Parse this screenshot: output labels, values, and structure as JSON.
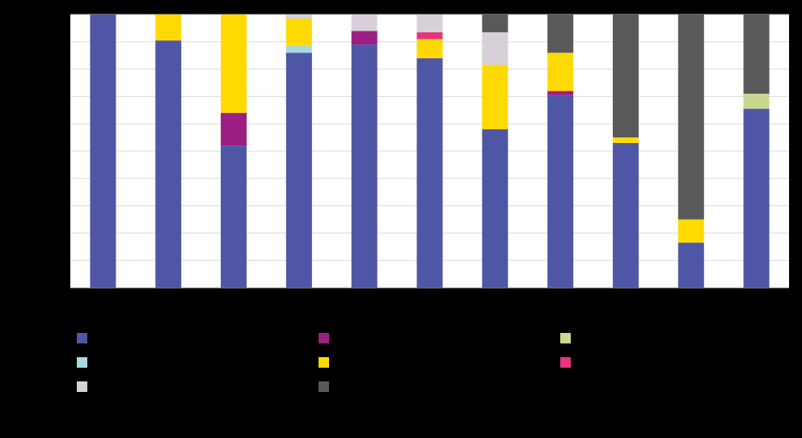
{
  "chart_data": {
    "type": "stacked_bar_percent",
    "categories": [
      null,
      null,
      null,
      null,
      null,
      null,
      null,
      null,
      null,
      null,
      null
    ],
    "ylim": [
      0,
      100
    ],
    "yticks": [
      0,
      10,
      20,
      30,
      40,
      50,
      60,
      70,
      80,
      90,
      100
    ],
    "grid": true,
    "series": [
      {
        "color": "#4f56a6",
        "values": [
          100,
          90.5,
          52,
          86,
          89,
          84,
          58,
          70.5,
          53,
          16.5,
          65.5
        ]
      },
      {
        "color": "#9b1f82",
        "values": [
          0,
          0,
          12,
          0,
          5,
          0,
          0,
          1.5,
          0,
          0,
          0
        ]
      },
      {
        "color": "#c9d88f",
        "values": [
          0,
          0,
          0,
          0,
          0,
          0,
          0,
          0,
          0,
          0,
          5.5
        ]
      },
      {
        "color": "#a9d8e0",
        "values": [
          0,
          0,
          0,
          2.5,
          0,
          0,
          0,
          0,
          0,
          0,
          0
        ]
      },
      {
        "color": "#ffd900",
        "values": [
          0,
          9.5,
          36,
          10,
          0,
          7,
          23.5,
          14,
          2,
          8.5,
          0
        ]
      },
      {
        "color": "#e8347d",
        "values": [
          0,
          0,
          0,
          0,
          0,
          2.5,
          0,
          0,
          0,
          0,
          0
        ]
      },
      {
        "color": "#d8d0d8",
        "values": [
          0,
          0,
          0,
          1.5,
          6,
          6.5,
          12,
          0,
          0,
          0,
          0
        ]
      },
      {
        "color": "#595959",
        "values": [
          0,
          0,
          0,
          0,
          0,
          0,
          6.5,
          14,
          45,
          75,
          29
        ]
      }
    ]
  }
}
